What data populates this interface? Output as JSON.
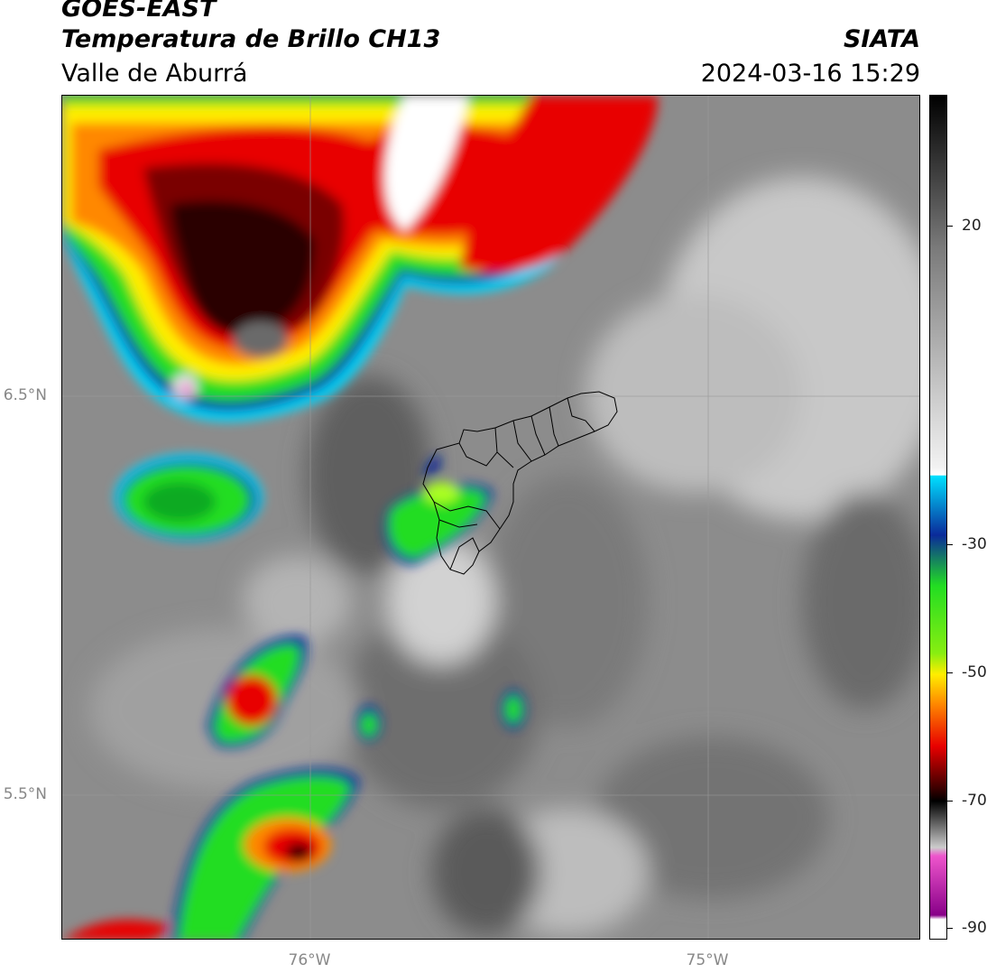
{
  "header": {
    "satellite": "GOES-EAST",
    "product": "Temperatura de Brillo CH13",
    "region": "Valle de Aburrá",
    "brand": "SIATA",
    "timestamp": "2024-03-16 15:29"
  },
  "map": {
    "lat_labels": [
      "6.5°N",
      "5.5°N"
    ],
    "lon_labels": [
      "76°W",
      "75°W"
    ]
  },
  "colorbar": {
    "ticks": [
      "20",
      "-30",
      "-50",
      "-70",
      "-90"
    ],
    "colors": {
      "gray_light": "#d8d8d8",
      "cyan": "#00e0ff",
      "blue": "#0a2a9a",
      "green": "#22dd22",
      "yellow": "#ffee00",
      "orange": "#ff8800",
      "red": "#e80000",
      "dark_red": "#3a0000",
      "black": "#000000",
      "pink": "#ee55cc",
      "purple": "#880088"
    }
  }
}
